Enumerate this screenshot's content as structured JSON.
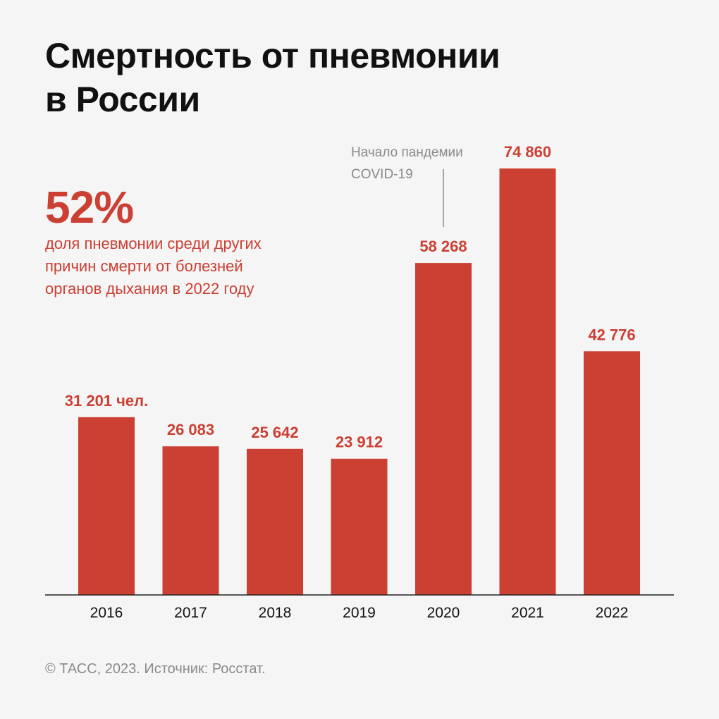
{
  "title": {
    "line1": "Смертность от пневмонии",
    "line2": "в России"
  },
  "highlight": {
    "value": "52%",
    "desc_line1": "доля пневмонии среди других",
    "desc_line2": "причин смерти от болезней",
    "desc_line3": "органов дыхания в 2022 году"
  },
  "annotation": {
    "line1": "Начало пандемии",
    "line2": "COVID-19",
    "category": "2020"
  },
  "footer": "© ТАСС, 2023. Источник: Росстат.",
  "colors": {
    "bar": "#cc3f33",
    "axis": "#222222",
    "annotation": "#8a8a8a",
    "text": "#111111"
  },
  "chart_data": {
    "type": "bar",
    "title": "Смертность от пневмонии в России",
    "categories": [
      "2016",
      "2017",
      "2018",
      "2019",
      "2020",
      "2021",
      "2022"
    ],
    "values": [
      31201,
      26083,
      25642,
      23912,
      58268,
      74860,
      42776
    ],
    "value_labels": [
      "31 201 чел.",
      "26 083",
      "25 642",
      "23 912",
      "58 268",
      "74 860",
      "42 776"
    ],
    "xlabel": "",
    "ylabel": "",
    "ylim": [
      0,
      74860
    ],
    "grid": false
  }
}
